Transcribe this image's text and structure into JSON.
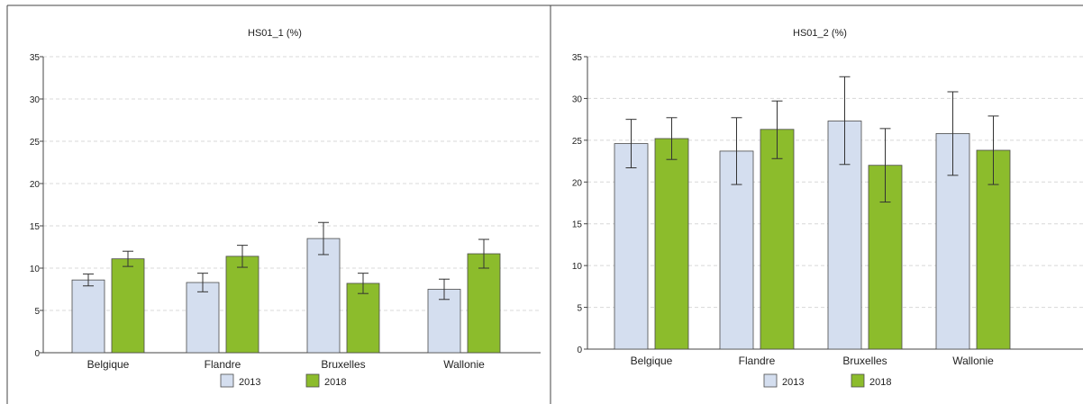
{
  "colors": {
    "series_2013": "#d4deef",
    "series_2018": "#8cbc2c",
    "bar_stroke": "#4a4a4a",
    "grid": "#d8d8d8",
    "frame": "#444444"
  },
  "legend": [
    "2013",
    "2018"
  ],
  "chart_data": [
    {
      "type": "bar",
      "title": "HS01_1 (%)",
      "xlabel": "",
      "ylabel": "",
      "ylim": [
        0,
        35
      ],
      "yticks": [
        "0",
        "5",
        "10",
        "15",
        "20",
        "25",
        "30",
        "35"
      ],
      "grid": true,
      "legend_position": "bottom",
      "categories": [
        "Belgique",
        "Flandre",
        "Bruxelles",
        "Wallonie"
      ],
      "series": [
        {
          "name": "2013",
          "values": [
            8.6,
            8.3,
            13.5,
            7.5
          ],
          "error_low": [
            7.9,
            7.2,
            11.6,
            6.3
          ],
          "error_high": [
            9.3,
            9.4,
            15.4,
            8.7
          ]
        },
        {
          "name": "2018",
          "values": [
            11.1,
            11.4,
            8.2,
            11.7
          ],
          "error_low": [
            10.2,
            10.1,
            7.0,
            10.0
          ],
          "error_high": [
            12.0,
            12.7,
            9.4,
            13.4
          ]
        }
      ]
    },
    {
      "type": "bar",
      "title": "HS01_2 (%)",
      "xlabel": "",
      "ylabel": "",
      "ylim": [
        0,
        35
      ],
      "yticks": [
        "0",
        "5",
        "10",
        "15",
        "20",
        "25",
        "30",
        "35"
      ],
      "grid": true,
      "legend_position": "bottom",
      "categories": [
        "Belgique",
        "Flandre",
        "Bruxelles",
        "Wallonie"
      ],
      "series": [
        {
          "name": "2013",
          "values": [
            24.6,
            23.7,
            27.3,
            25.8
          ],
          "error_low": [
            21.7,
            19.7,
            22.1,
            20.8
          ],
          "error_high": [
            27.5,
            27.7,
            32.6,
            30.8
          ]
        },
        {
          "name": "2018",
          "values": [
            25.2,
            26.3,
            22.0,
            23.8
          ],
          "error_low": [
            22.7,
            22.8,
            17.6,
            19.7
          ],
          "error_high": [
            27.7,
            29.7,
            26.4,
            27.9
          ]
        }
      ]
    }
  ]
}
